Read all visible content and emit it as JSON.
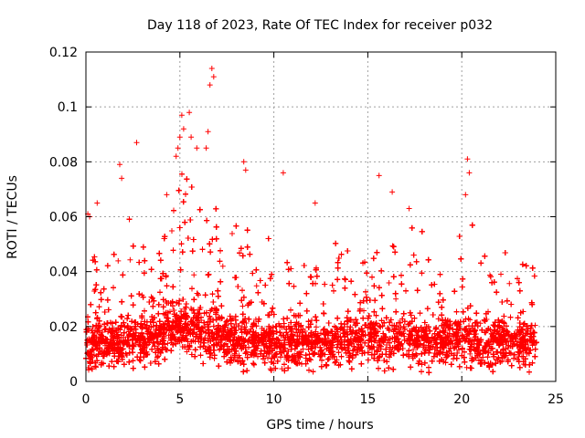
{
  "chart_data": {
    "type": "scatter",
    "title": "Day 118 of 2023, Rate Of TEC Index for receiver p032",
    "xlabel": "GPS time / hours",
    "ylabel": "ROTI / TECUs",
    "xlim": [
      0,
      25
    ],
    "ylim": [
      0,
      0.12
    ],
    "x_ticks": [
      "0",
      "5",
      "10",
      "15",
      "20",
      "25"
    ],
    "y_ticks": [
      "0",
      "0.02",
      "0.04",
      "0.06",
      "0.08",
      "0.1",
      "0.12"
    ],
    "grid": true,
    "marker": "plus",
    "color": "#ff0000",
    "series": [
      {
        "x_range": [
          0,
          24
        ],
        "points_per_hour": 520,
        "baseline_profile": [
          [
            0,
            0.013
          ],
          [
            1,
            0.013
          ],
          [
            2,
            0.014
          ],
          [
            3,
            0.015
          ],
          [
            4,
            0.017
          ],
          [
            5,
            0.02
          ],
          [
            6,
            0.019
          ],
          [
            7,
            0.016
          ],
          [
            8,
            0.015
          ],
          [
            9,
            0.015
          ],
          [
            10,
            0.014
          ],
          [
            11,
            0.014
          ],
          [
            12,
            0.014
          ],
          [
            13,
            0.014
          ],
          [
            14,
            0.015
          ],
          [
            15,
            0.015
          ],
          [
            16,
            0.015
          ],
          [
            17,
            0.015
          ],
          [
            18,
            0.014
          ],
          [
            19,
            0.014
          ],
          [
            20,
            0.015
          ],
          [
            21,
            0.014
          ],
          [
            22,
            0.014
          ],
          [
            23,
            0.014
          ],
          [
            24,
            0.014
          ]
        ],
        "upper_envelope": [
          [
            0,
            0.055
          ],
          [
            0.5,
            0.045
          ],
          [
            1,
            0.04
          ],
          [
            1.5,
            0.048
          ],
          [
            2,
            0.06
          ],
          [
            2.5,
            0.06
          ],
          [
            3,
            0.05
          ],
          [
            3.5,
            0.058
          ],
          [
            4,
            0.06
          ],
          [
            4.5,
            0.07
          ],
          [
            5,
            0.08
          ],
          [
            5.5,
            0.085
          ],
          [
            6,
            0.06
          ],
          [
            6.5,
            0.085
          ],
          [
            7,
            0.06
          ],
          [
            7.5,
            0.05
          ],
          [
            8,
            0.06
          ],
          [
            8.5,
            0.058
          ],
          [
            9,
            0.05
          ],
          [
            9.5,
            0.05
          ],
          [
            10,
            0.055
          ],
          [
            10.5,
            0.06
          ],
          [
            11,
            0.045
          ],
          [
            11.5,
            0.05
          ],
          [
            12,
            0.05
          ],
          [
            12.5,
            0.05
          ],
          [
            13,
            0.05
          ],
          [
            13.5,
            0.056
          ],
          [
            14,
            0.052
          ],
          [
            14.5,
            0.045
          ],
          [
            15,
            0.045
          ],
          [
            15.5,
            0.048
          ],
          [
            16,
            0.05
          ],
          [
            16.5,
            0.055
          ],
          [
            17,
            0.052
          ],
          [
            17.5,
            0.06
          ],
          [
            18,
            0.055
          ],
          [
            18.5,
            0.045
          ],
          [
            19,
            0.04
          ],
          [
            19.5,
            0.048
          ],
          [
            20,
            0.058
          ],
          [
            20.5,
            0.06
          ],
          [
            21,
            0.045
          ],
          [
            21.5,
            0.05
          ],
          [
            22,
            0.05
          ],
          [
            22.5,
            0.048
          ],
          [
            23,
            0.048
          ],
          [
            23.5,
            0.045
          ],
          [
            24,
            0.04
          ]
        ],
        "notable_points": [
          [
            0.1,
            0.061
          ],
          [
            0.2,
            0.06
          ],
          [
            0.6,
            0.065
          ],
          [
            1.8,
            0.079
          ],
          [
            1.9,
            0.074
          ],
          [
            2.7,
            0.087
          ],
          [
            4.3,
            0.068
          ],
          [
            4.8,
            0.082
          ],
          [
            4.9,
            0.085
          ],
          [
            5.0,
            0.089
          ],
          [
            5.1,
            0.097
          ],
          [
            5.2,
            0.092
          ],
          [
            5.5,
            0.098
          ],
          [
            5.6,
            0.089
          ],
          [
            5.9,
            0.085
          ],
          [
            6.4,
            0.085
          ],
          [
            6.5,
            0.091
          ],
          [
            6.6,
            0.108
          ],
          [
            6.7,
            0.114
          ],
          [
            6.8,
            0.111
          ],
          [
            8.4,
            0.08
          ],
          [
            8.5,
            0.077
          ],
          [
            10.5,
            0.076
          ],
          [
            12.2,
            0.065
          ],
          [
            15.6,
            0.075
          ],
          [
            16.3,
            0.069
          ],
          [
            17.2,
            0.063
          ],
          [
            20.3,
            0.081
          ],
          [
            20.4,
            0.076
          ],
          [
            20.2,
            0.068
          ]
        ]
      }
    ]
  }
}
